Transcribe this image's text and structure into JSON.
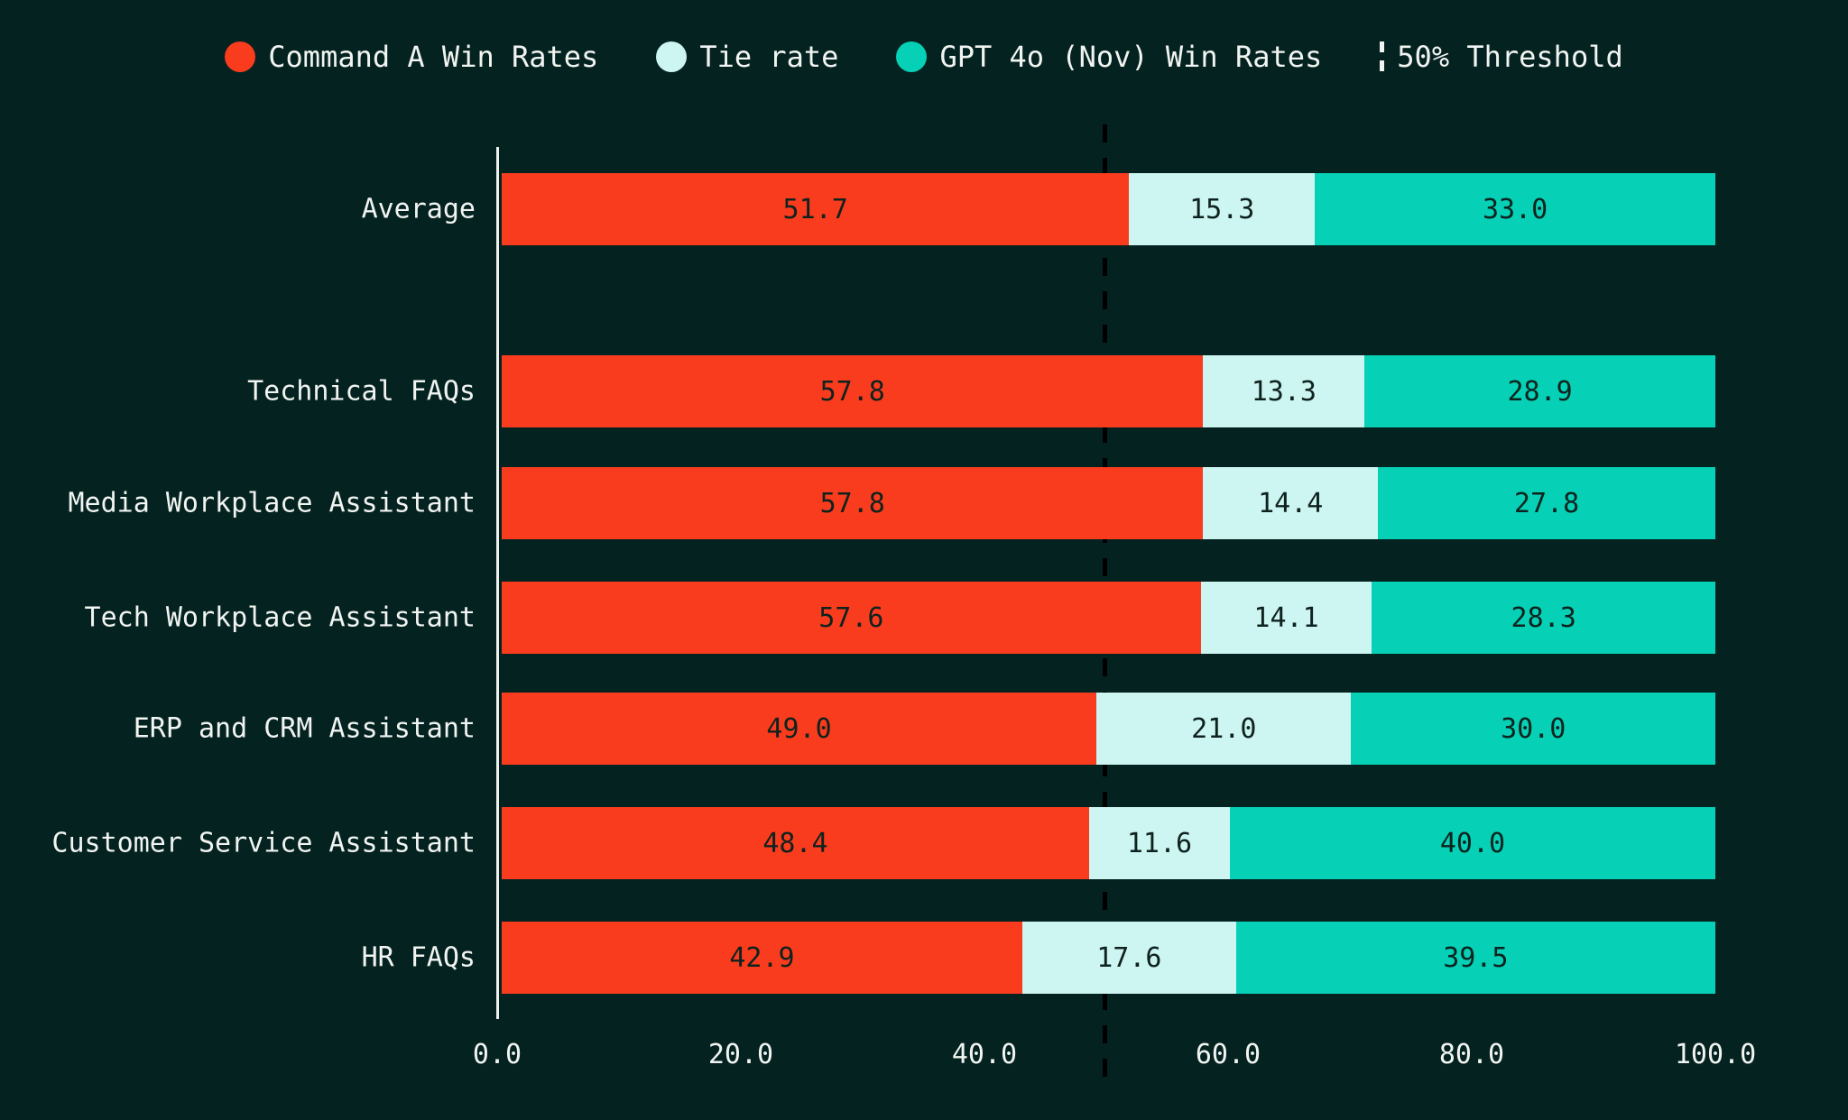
{
  "page": {
    "background_color": "#042320",
    "text_color": "#f1f4f1",
    "value_text_color": "#0e221e",
    "threshold_line_color": "#000000",
    "axis_line_color": "#eef2ee"
  },
  "legend": {
    "items": [
      {
        "label": "Command A Win Rates",
        "icon": "dot",
        "color": "#fa3c1e"
      },
      {
        "label": "Tie rate",
        "icon": "dot",
        "color": "#cdf6f3"
      },
      {
        "label": "GPT 4o (Nov) Win Rates",
        "icon": "dot",
        "color": "#06d0b5"
      },
      {
        "label": "50% Threshold",
        "icon": "dashed-line",
        "color": "#f1f4f1"
      }
    ]
  },
  "chart_data": {
    "type": "bar",
    "orientation": "horizontal",
    "stacked": true,
    "title": "",
    "xlabel": "",
    "ylabel": "",
    "xlim": [
      0,
      100
    ],
    "x_ticks": [
      "0.0",
      "20.0",
      "40.0",
      "60.0",
      "80.0",
      "100.0"
    ],
    "grid": false,
    "legend_position": "top-center",
    "threshold": {
      "value": 50,
      "label": "50% Threshold",
      "style": "dashed-black"
    },
    "categories": [
      "Average",
      "Technical FAQs",
      "Media Workplace Assistant",
      "Tech Workplace Assistant",
      "ERP and CRM Assistant",
      "Customer Service Assistant",
      "HR FAQs"
    ],
    "series": [
      {
        "name": "Command A Win Rates",
        "color": "#fa3c1e",
        "values": [
          51.7,
          57.8,
          57.8,
          57.6,
          49.0,
          48.4,
          42.9
        ]
      },
      {
        "name": "Tie rate",
        "color": "#cdf6f3",
        "values": [
          15.3,
          13.3,
          14.4,
          14.1,
          21.0,
          11.6,
          17.6
        ]
      },
      {
        "name": "GPT 4o (Nov) Win Rates",
        "color": "#06d0b5",
        "values": [
          33.0,
          28.9,
          27.8,
          28.3,
          30.0,
          40.0,
          39.5
        ]
      }
    ],
    "value_labels_shown": true,
    "value_label_decimals": 1
  }
}
